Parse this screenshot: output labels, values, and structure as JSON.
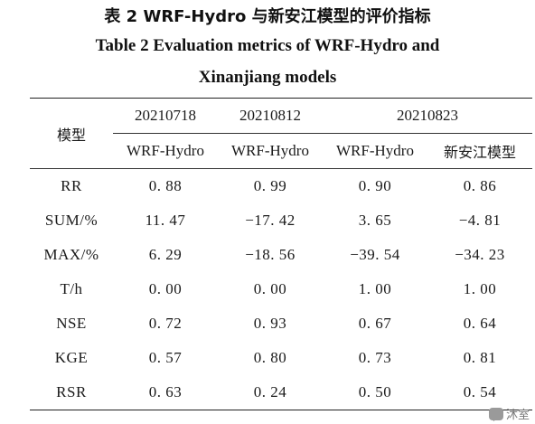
{
  "caption": {
    "cn": "表 2   WRF-Hydro 与新安江模型的评价指标",
    "en_line1": "Table 2    Evaluation metrics of WRF-Hydro and",
    "en_line2": "Xinanjiang models"
  },
  "table": {
    "model_header": "模型",
    "dates": [
      "20210718",
      "20210812",
      "20210823"
    ],
    "models": [
      "WRF-Hydro",
      "WRF-Hydro",
      "WRF-Hydro",
      "新安江模型"
    ],
    "rows": [
      {
        "metric": "RR",
        "values": [
          "0. 88",
          "0. 99",
          "0. 90",
          "0. 86"
        ]
      },
      {
        "metric": "SUM/%",
        "values": [
          "11. 47",
          "−17. 42",
          "3. 65",
          "−4. 81"
        ]
      },
      {
        "metric": "MAX/%",
        "values": [
          "6. 29",
          "−18. 56",
          "−39. 54",
          "−34. 23"
        ]
      },
      {
        "metric": "T/h",
        "values": [
          "0. 00",
          "0. 00",
          "1. 00",
          "1. 00"
        ]
      },
      {
        "metric": "NSE",
        "values": [
          "0. 72",
          "0. 93",
          "0. 67",
          "0. 64"
        ]
      },
      {
        "metric": "KGE",
        "values": [
          "0. 57",
          "0. 80",
          "0. 73",
          "0. 81"
        ]
      },
      {
        "metric": "RSR",
        "values": [
          "0. 63",
          "0. 24",
          "0. 50",
          "0. 54"
        ]
      }
    ]
  },
  "watermark": {
    "text": "沐室",
    "icon": "wechat-logo-icon"
  }
}
